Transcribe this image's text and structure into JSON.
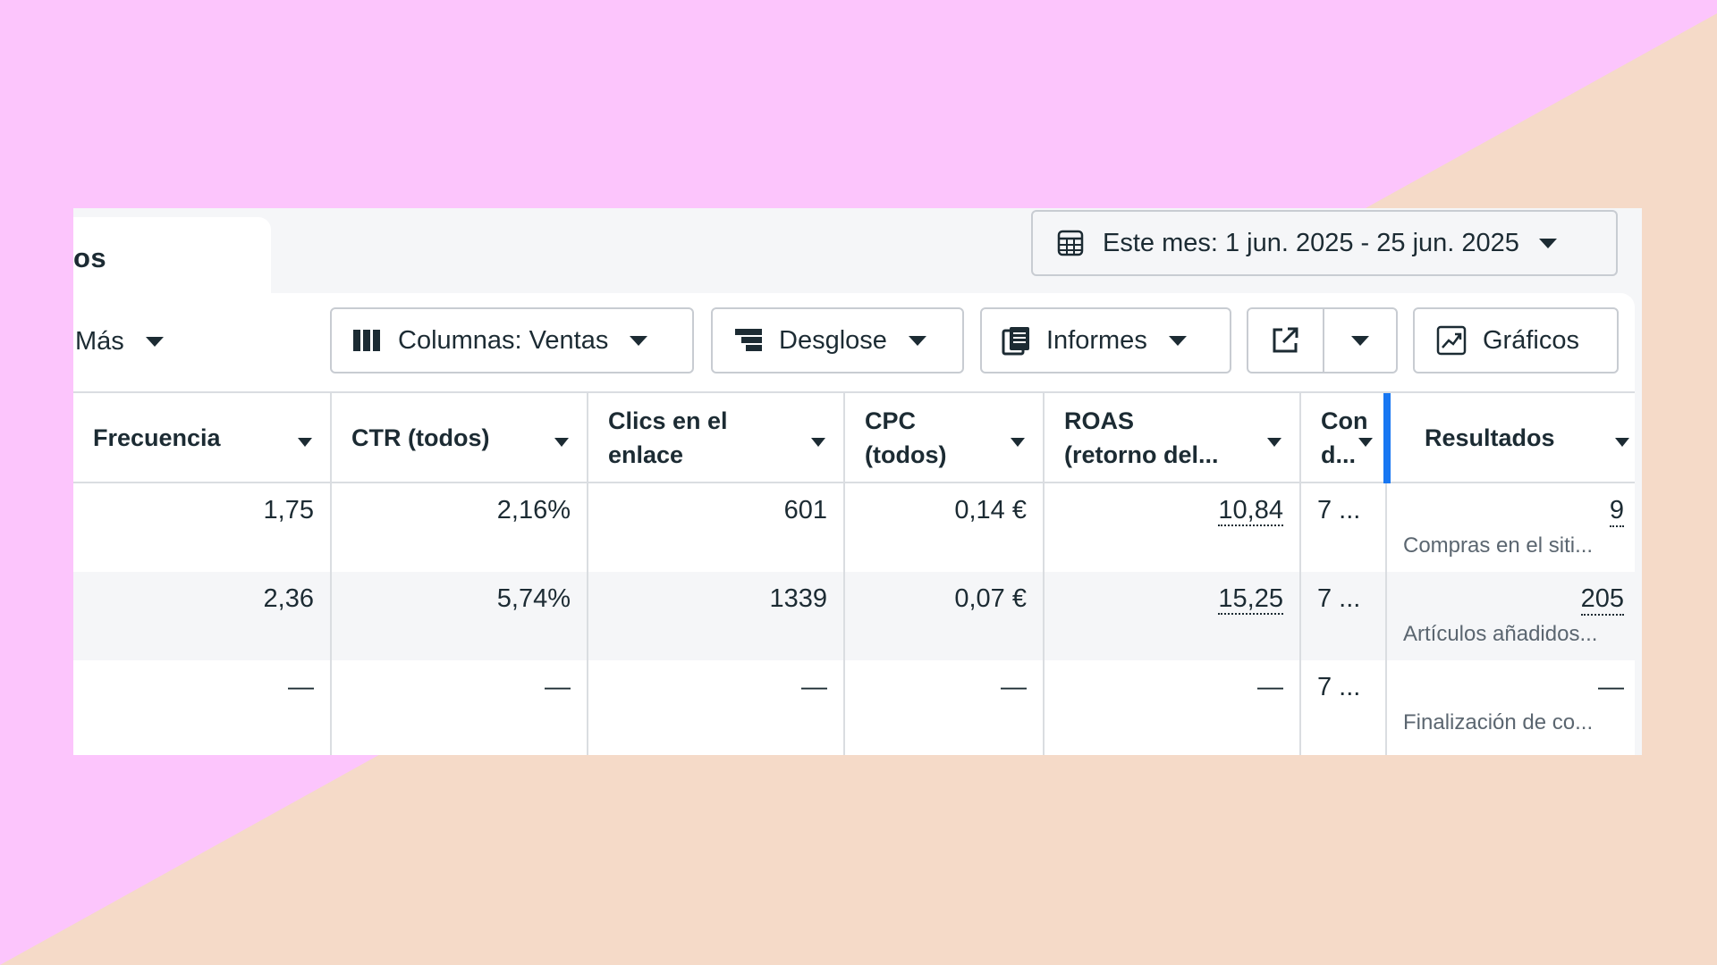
{
  "tab_label": "os",
  "date_range": {
    "label": "Este mes: 1 jun. 2025 - 25 jun. 2025"
  },
  "toolbar": {
    "more": "Más",
    "columns": "Columnas: Ventas",
    "breakdown": "Desglose",
    "reports": "Informes",
    "charts": "Gráficos"
  },
  "table": {
    "headers": [
      {
        "line1": "Frecuencia",
        "line2": ""
      },
      {
        "line1": "CTR (todos)",
        "line2": ""
      },
      {
        "line1": "Clics en el",
        "line2": "enlace"
      },
      {
        "line1": "CPC",
        "line2": "(todos)"
      },
      {
        "line1": "ROAS",
        "line2": "(retorno del..."
      },
      {
        "line1": "Con",
        "line2": "d..."
      },
      {
        "line1": "Resultados",
        "line2": ""
      }
    ],
    "rows": [
      {
        "frecuencia": "1,75",
        "ctr": "2,16%",
        "clics": "601",
        "cpc": "0,14 €",
        "roas": "10,84",
        "con": "7 ...",
        "resultado": "9",
        "resultado_sub": "Compras en el siti..."
      },
      {
        "frecuencia": "2,36",
        "ctr": "5,74%",
        "clics": "1339",
        "cpc": "0,07 €",
        "roas": "15,25",
        "con": "7 ...",
        "resultado": "205",
        "resultado_sub": "Artículos añadidos..."
      },
      {
        "frecuencia": "—",
        "ctr": "—",
        "clics": "—",
        "cpc": "—",
        "roas": "—",
        "con": "7 ...",
        "resultado": "—",
        "resultado_sub": "Finalización de co..."
      }
    ]
  },
  "colors": {
    "bg_pink": "#fcc5fc",
    "bg_peach": "#f5dac8",
    "accent_blue": "#1877f2",
    "text": "#1c2b33"
  }
}
